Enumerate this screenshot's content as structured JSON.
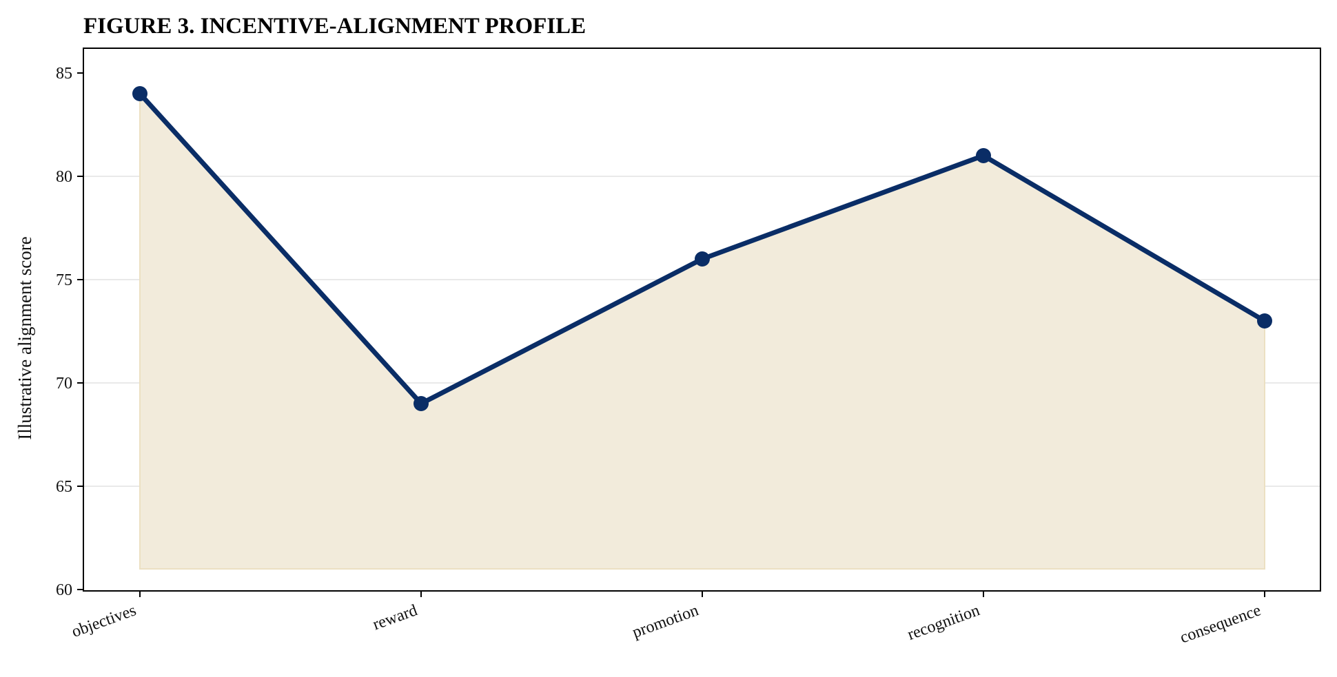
{
  "chart_data": {
    "type": "area",
    "title": "FIGURE 3. INCENTIVE-ALIGNMENT PROFILE",
    "xlabel": "",
    "ylabel": "Illustrative alignment score",
    "categories": [
      "objectives",
      "reward",
      "promotion",
      "recognition",
      "consequence"
    ],
    "values": [
      84,
      69,
      76,
      81,
      73
    ],
    "area_baseline": 61,
    "ylim": [
      60,
      85
    ],
    "yticks": [
      60,
      65,
      70,
      75,
      80,
      85
    ],
    "grid": "horizontal",
    "legend": "none",
    "colors": {
      "line": "#0a2d66",
      "marker": "#0a2d66",
      "fill": "#f2ebdb",
      "fill_edge": "#ece0c2",
      "grid": "#e9e9e9",
      "axis": "#000000"
    }
  }
}
